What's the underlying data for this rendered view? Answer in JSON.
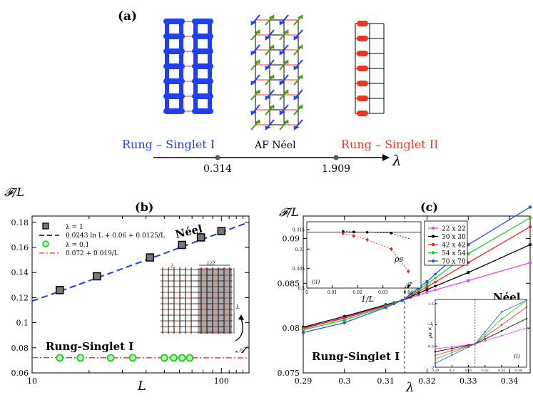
{
  "panel_a": {
    "label": "(a)",
    "phase_labels": [
      "Rung – Singlet I",
      "AF Néel",
      "Rung – Singlet II"
    ],
    "axis_symbol": "λ",
    "critical_points": [
      "0.314",
      "1.909"
    ],
    "colors": {
      "blue": "#1f3ff0",
      "red": "#f0321e",
      "green": "#4a9a1a"
    }
  },
  "panel_b": {
    "label": "(b)",
    "ylabel": "𝓕/L",
    "xlabel": "L",
    "yticks": [
      "0.18",
      "0.16",
      "0.14",
      "0.12",
      "0.1",
      "0.08",
      "0.06"
    ],
    "xticks": [
      "10",
      "100"
    ],
    "legend": [
      "λ = 1",
      "0.0243 ln L + 0.06 + 0.0125/L",
      "λ = 0.1",
      "0.072 + 0.019/L"
    ],
    "annotations": {
      "neel": "Néel",
      "rung": "Rung-Singlet I",
      "region": "𝒜",
      "lambda": "λ",
      "half": "L/2",
      "size": "L"
    }
  },
  "panel_c": {
    "label": "(c)",
    "ylabel": "𝓕/L",
    "xlabel": "λ",
    "yticks": [
      "0.09",
      "0.085",
      "0.08",
      "0.075"
    ],
    "xticks": [
      "0.29",
      "0.3",
      "0.31",
      "0.32",
      "0.33",
      "0.34"
    ],
    "legend": [
      "22 x 22",
      "30 x 30",
      "42 x 42",
      "54 x 54",
      "70 x 70"
    ],
    "legend_colors": [
      "#ee44ee",
      "#000000",
      "#ee2222",
      "#22cc22",
      "#2255ee"
    ],
    "annotations": {
      "neel": "Néel",
      "rung": "Rung-Singlet I"
    },
    "inset_ii": {
      "tag": "(ii)",
      "xlabel": "1/L",
      "yticks": [
        "0.315",
        "0.31",
        "0.305",
        "0.3"
      ],
      "xticks": [
        "0",
        "0.01",
        "0.02",
        "0.03",
        "0.04"
      ],
      "rho": "ρs",
      "F": "𝓕"
    },
    "inset_i": {
      "tag": "(i)",
      "ylabel": "ρs × L",
      "yticks": [
        "1.5",
        "1",
        "0.5",
        "0"
      ],
      "xticks": [
        "0.29",
        "0.3",
        "0.31",
        "0.32",
        "0.33",
        "0.34"
      ]
    }
  },
  "chart_data": [
    {
      "type": "scatter",
      "title": "(b)",
      "xlabel": "L",
      "ylabel": "F/L",
      "xscale": "log",
      "xlim": [
        10,
        140
      ],
      "ylim": [
        0.06,
        0.185
      ],
      "series": [
        {
          "name": "λ = 1",
          "x": [
            14,
            22,
            42,
            62,
            78,
            100
          ],
          "y": [
            0.126,
            0.137,
            0.152,
            0.162,
            0.168,
            0.173
          ]
        },
        {
          "name": "λ = 0.1",
          "x": [
            14,
            18,
            26,
            34,
            50,
            56,
            62,
            68
          ],
          "y": [
            0.072,
            0.072,
            0.072,
            0.072,
            0.072,
            0.072,
            0.072,
            0.072
          ]
        }
      ]
    },
    {
      "type": "line",
      "title": "(c)",
      "xlabel": "λ",
      "ylabel": "F/L",
      "xlim": [
        0.29,
        0.345
      ],
      "ylim": [
        0.075,
        0.0925
      ],
      "series": [
        {
          "name": "22 x 22",
          "x": [
            0.29,
            0.3,
            0.31,
            0.314,
            0.32,
            0.33,
            0.345
          ],
          "y": [
            0.0799,
            0.0812,
            0.0826,
            0.0831,
            0.084,
            0.0853,
            0.0873
          ]
        },
        {
          "name": "30 x 30",
          "x": [
            0.29,
            0.3,
            0.31,
            0.314,
            0.32,
            0.33,
            0.345
          ],
          "y": [
            0.0801,
            0.0813,
            0.0826,
            0.0831,
            0.0843,
            0.0862,
            0.0893
          ]
        },
        {
          "name": "42 x 42",
          "x": [
            0.29,
            0.3,
            0.31,
            0.314,
            0.32,
            0.33,
            0.345
          ],
          "y": [
            0.08,
            0.0811,
            0.0825,
            0.0831,
            0.0846,
            0.0873,
            0.0913
          ]
        },
        {
          "name": "54 x 54",
          "x": [
            0.29,
            0.3,
            0.31,
            0.314,
            0.32,
            0.33,
            0.345
          ],
          "y": [
            0.0798,
            0.0809,
            0.0824,
            0.0831,
            0.0849,
            0.0883,
            0.0923
          ]
        },
        {
          "name": "70 x 70",
          "x": [
            0.29,
            0.3,
            0.31,
            0.314,
            0.32,
            0.33,
            0.345
          ],
          "y": [
            0.0795,
            0.0806,
            0.0823,
            0.0831,
            0.0852,
            0.0893,
            0.0935
          ]
        }
      ]
    }
  ]
}
